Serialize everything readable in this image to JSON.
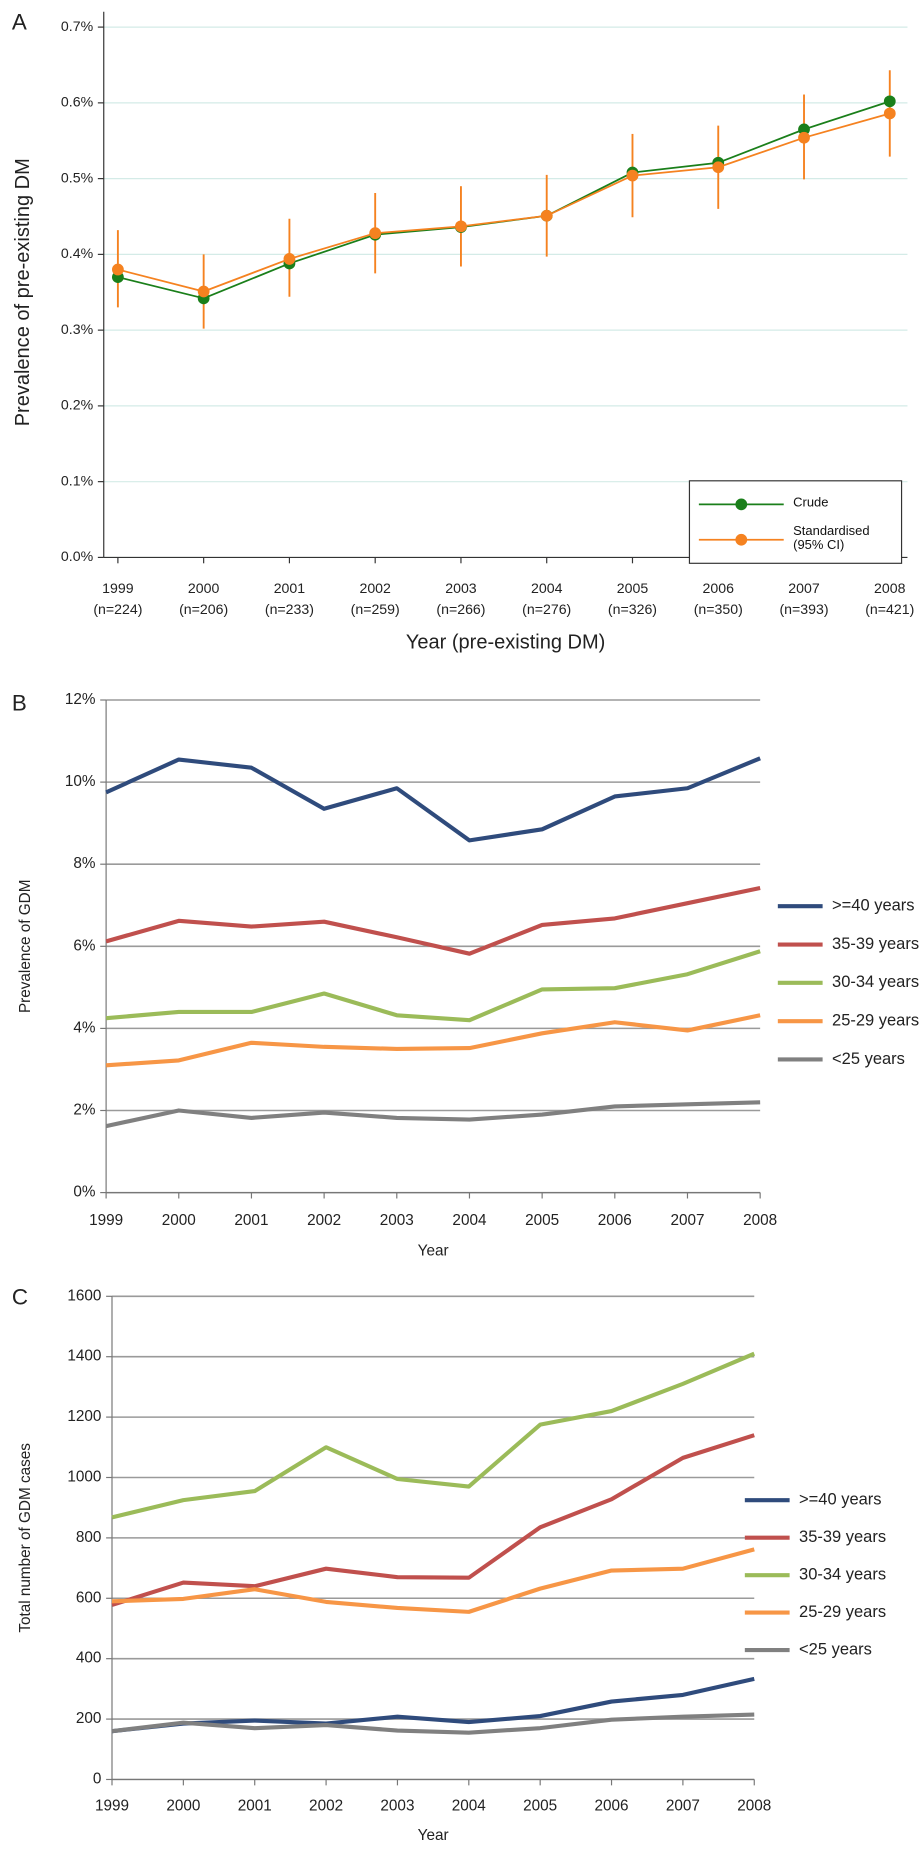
{
  "chart_data": [
    {
      "type": "line",
      "label": "A",
      "ylabel": "Prevalence of pre-existing DM",
      "xlabel": "Year (pre-existing DM)",
      "categories": [
        "1999",
        "2000",
        "2001",
        "2002",
        "2003",
        "2004",
        "2005",
        "2006",
        "2007",
        "2008"
      ],
      "category_notes": [
        "(n=224)",
        "(n=206)",
        "(n=233)",
        "(n=259)",
        "(n=266)",
        "(n=276)",
        "(n=326)",
        "(n=350)",
        "(n=393)",
        "(n=421)"
      ],
      "ylim": [
        0,
        0.7
      ],
      "yticks": [
        {
          "value": 0,
          "label": "0.0%"
        },
        {
          "value": 0.1,
          "label": "0.1%"
        },
        {
          "value": 0.2,
          "label": "0.2%"
        },
        {
          "value": 0.3,
          "label": "0.3%"
        },
        {
          "value": 0.4,
          "label": "0.4%"
        },
        {
          "value": 0.5,
          "label": "0.5%"
        },
        {
          "value": 0.6,
          "label": "0.6%"
        },
        {
          "value": 0.7,
          "label": "0.7%"
        }
      ],
      "grid": true,
      "grid_color": "#d4ebe7",
      "legend": "lower right",
      "markers": true,
      "series": [
        {
          "name": "Crude",
          "color": "#1a7f1a",
          "values": [
            0.37,
            0.342,
            0.388,
            0.426,
            0.436,
            0.451,
            0.508,
            0.521,
            0.565,
            0.602
          ]
        },
        {
          "name": "Standardised\n(95% CI)",
          "color": "#f58220",
          "values": [
            0.38,
            0.351,
            0.394,
            0.428,
            0.437,
            0.451,
            0.504,
            0.515,
            0.554,
            0.586
          ],
          "lower": [
            0.33,
            0.302,
            0.344,
            0.375,
            0.384,
            0.397,
            0.449,
            0.46,
            0.499,
            0.529
          ],
          "upper": [
            0.432,
            0.4,
            0.447,
            0.481,
            0.49,
            0.505,
            0.559,
            0.57,
            0.611,
            0.643
          ]
        }
      ]
    },
    {
      "type": "line",
      "label": "B",
      "ylabel": "Prevalence of GDM",
      "xlabel": "Year",
      "categories": [
        "1999",
        "2000",
        "2001",
        "2002",
        "2003",
        "2004",
        "2005",
        "2006",
        "2007",
        "2008"
      ],
      "ylim": [
        0,
        12
      ],
      "yticks": [
        {
          "value": 0,
          "label": "0%"
        },
        {
          "value": 2,
          "label": "2%"
        },
        {
          "value": 4,
          "label": "4%"
        },
        {
          "value": 6,
          "label": "6%"
        },
        {
          "value": 8,
          "label": "8%"
        },
        {
          "value": 10,
          "label": "10%"
        },
        {
          "value": 12,
          "label": "12%"
        }
      ],
      "grid": true,
      "grid_color": "#9a9a9a",
      "legend": "right",
      "series": [
        {
          "name": ">=40 years",
          "color": "#2f4b7c",
          "values": [
            9.75,
            10.55,
            10.35,
            9.35,
            9.85,
            8.58,
            8.85,
            9.65,
            9.85,
            10.58
          ]
        },
        {
          "name": "35-39 years",
          "color": "#c0504d",
          "values": [
            6.12,
            6.62,
            6.48,
            6.6,
            6.22,
            5.82,
            6.52,
            6.68,
            7.05,
            7.42
          ]
        },
        {
          "name": "30-34 years",
          "color": "#9bbb59",
          "values": [
            4.25,
            4.4,
            4.4,
            4.85,
            4.32,
            4.2,
            4.95,
            4.98,
            5.32,
            5.88
          ]
        },
        {
          "name": "25-29 years",
          "color": "#f79646",
          "values": [
            3.1,
            3.22,
            3.65,
            3.55,
            3.5,
            3.52,
            3.88,
            4.15,
            3.95,
            4.32
          ]
        },
        {
          "name": "<25 years",
          "color": "#808080",
          "values": [
            1.62,
            2.0,
            1.82,
            1.95,
            1.82,
            1.78,
            1.9,
            2.1,
            2.15,
            2.2
          ]
        }
      ]
    },
    {
      "type": "line",
      "label": "C",
      "ylabel": "Total number of GDM cases",
      "xlabel": "Year",
      "categories": [
        "1999",
        "2000",
        "2001",
        "2002",
        "2003",
        "2004",
        "2005",
        "2006",
        "2007",
        "2008"
      ],
      "ylim": [
        0,
        1600
      ],
      "yticks": [
        0,
        200,
        400,
        600,
        800,
        1000,
        1200,
        1400,
        1600
      ],
      "grid": true,
      "grid_color": "#9a9a9a",
      "legend": "right",
      "series": [
        {
          "name": ">=40 years",
          "color": "#2f4b7c",
          "values": [
            160,
            185,
            195,
            185,
            208,
            190,
            210,
            258,
            280,
            333
          ]
        },
        {
          "name": "35-39 years",
          "color": "#c0504d",
          "values": [
            578,
            652,
            640,
            698,
            670,
            668,
            835,
            928,
            1065,
            1140
          ]
        },
        {
          "name": "30-34 years",
          "color": "#9bbb59",
          "values": [
            868,
            925,
            955,
            1100,
            995,
            970,
            1175,
            1220,
            1310,
            1410
          ]
        },
        {
          "name": "25-29 years",
          "color": "#f79646",
          "values": [
            590,
            598,
            630,
            588,
            568,
            555,
            632,
            692,
            698,
            762
          ]
        },
        {
          "name": "<25 years",
          "color": "#808080",
          "values": [
            160,
            188,
            170,
            180,
            162,
            155,
            170,
            198,
            208,
            215
          ]
        }
      ]
    }
  ]
}
